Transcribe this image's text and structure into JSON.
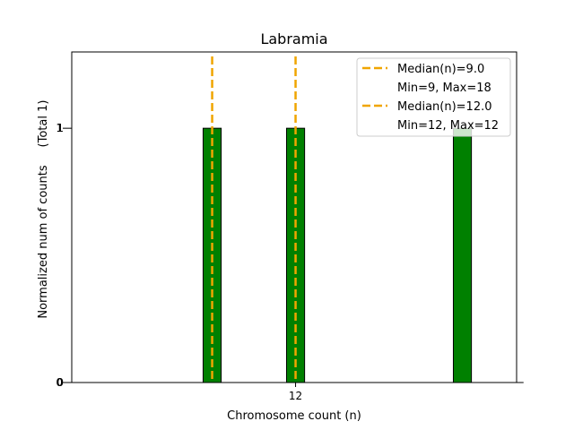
{
  "chart_data": {
    "type": "bar",
    "title": "Labramia",
    "xlabel": "Chromosome count (n)",
    "ylabel": "Normalized num of counts",
    "ylabel_note": "(Total 1)",
    "xlim": [
      3.95,
      19.95
    ],
    "ylim": [
      0,
      1.3
    ],
    "x_ticks": [
      12
    ],
    "y_ticks": [
      0,
      1
    ],
    "y_ticks_left": [
      0,
      1
    ],
    "bars": [
      {
        "x": 9,
        "value": 1
      },
      {
        "x": 12,
        "value": 1
      },
      {
        "x": 18,
        "value": 1
      }
    ],
    "bar_width": 0.65,
    "bar_color": "#008000",
    "median_lines": [
      {
        "x": 9.0,
        "label": "Median(n)=9.0",
        "sublabel": "Min=9, Max=18"
      },
      {
        "x": 12.0,
        "label": "Median(n)=12.0",
        "sublabel": "Min=12, Max=12"
      }
    ],
    "median_color": "#f0a500",
    "grid": false,
    "legend_position": "top-right"
  }
}
